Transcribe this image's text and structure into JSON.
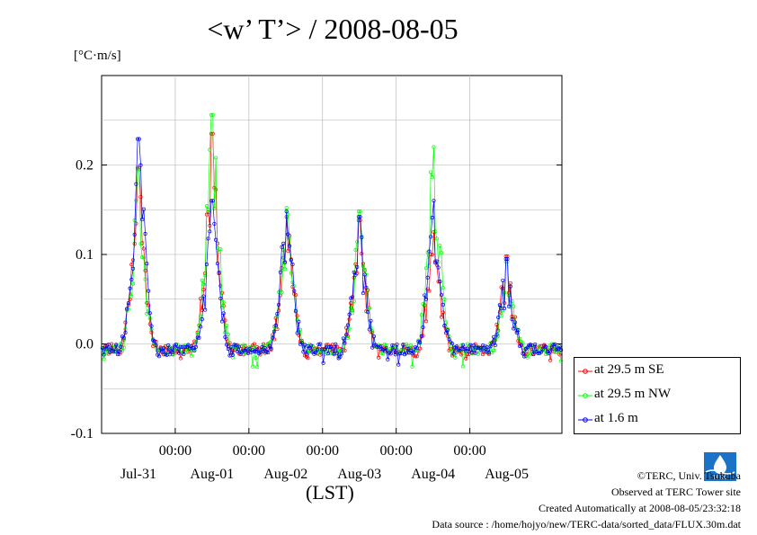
{
  "header": {
    "title": "<w’ T’> / 2008-08-05",
    "y_unit": "[°C·m/s]",
    "x_unit": "(LST)"
  },
  "credits": {
    "copyright": "©TERC, Univ. Tsukuba",
    "observed": "Observed at TERC Tower site",
    "created": "Created Automatically at 2008-08-05/23:32:18",
    "source": "Data source : /home/hojyo/new/TERC-data/sorted_data/FLUX.30m.dat"
  },
  "logo": {
    "text": "TERC"
  },
  "legend": [
    {
      "label": "at 29.5 m SE",
      "color": "#ff0000"
    },
    {
      "label": "at 29.5 m NW",
      "color": "#00ff00"
    },
    {
      "label": "at 1.6 m",
      "color": "#0000ff"
    }
  ],
  "chart_data": {
    "type": "line",
    "title": "<w’ T’> / 2008-08-05",
    "ylabel": "[°C·m/s]",
    "xlabel": "(LST)",
    "ylim": [
      -0.1,
      0.3
    ],
    "xlim": [
      -12,
      138
    ],
    "x_unit_note": "hours relative to 2008-07-31 00:00 LST",
    "y_ticks": [
      -0.1,
      0.0,
      0.1,
      0.2
    ],
    "y_tick_labels": [
      "-0.1",
      "0.0",
      "0.1",
      "0.2"
    ],
    "x_ticks": [
      12,
      36,
      60,
      84,
      108
    ],
    "x_tick_labels": [
      "00:00",
      "00:00",
      "00:00",
      "00:00",
      "00:00"
    ],
    "day_labels": [
      "Jul-31",
      "Aug-01",
      "Aug-02",
      "Aug-03",
      "Aug-04",
      "Aug-05"
    ],
    "grid": true,
    "legend_position": "right-bottom",
    "days": [
      {
        "peak_hour": 0.0,
        "peaks": [
          0.197,
          0.195,
          0.229
        ]
      },
      {
        "peak_hour": 24.0,
        "peaks": [
          0.235,
          0.256,
          0.16
        ]
      },
      {
        "peak_hour": 48.3,
        "peaks": [
          0.142,
          0.152,
          0.148
        ]
      },
      {
        "peak_hour": 72.0,
        "peaks": [
          0.138,
          0.148,
          0.142
        ]
      },
      {
        "peak_hour": 96.3,
        "peaks": [
          0.125,
          0.22,
          0.16
        ]
      },
      {
        "peak_hour": 120.0,
        "peaks": [
          0.098,
          0.092,
          0.095
        ]
      }
    ],
    "series": [
      {
        "name": "at 29.5 m SE",
        "color": "#ff0000"
      },
      {
        "name": "at 29.5 m NW",
        "color": "#00ff00"
      },
      {
        "name": "at 1.6 m",
        "color": "#0000ff"
      }
    ]
  }
}
